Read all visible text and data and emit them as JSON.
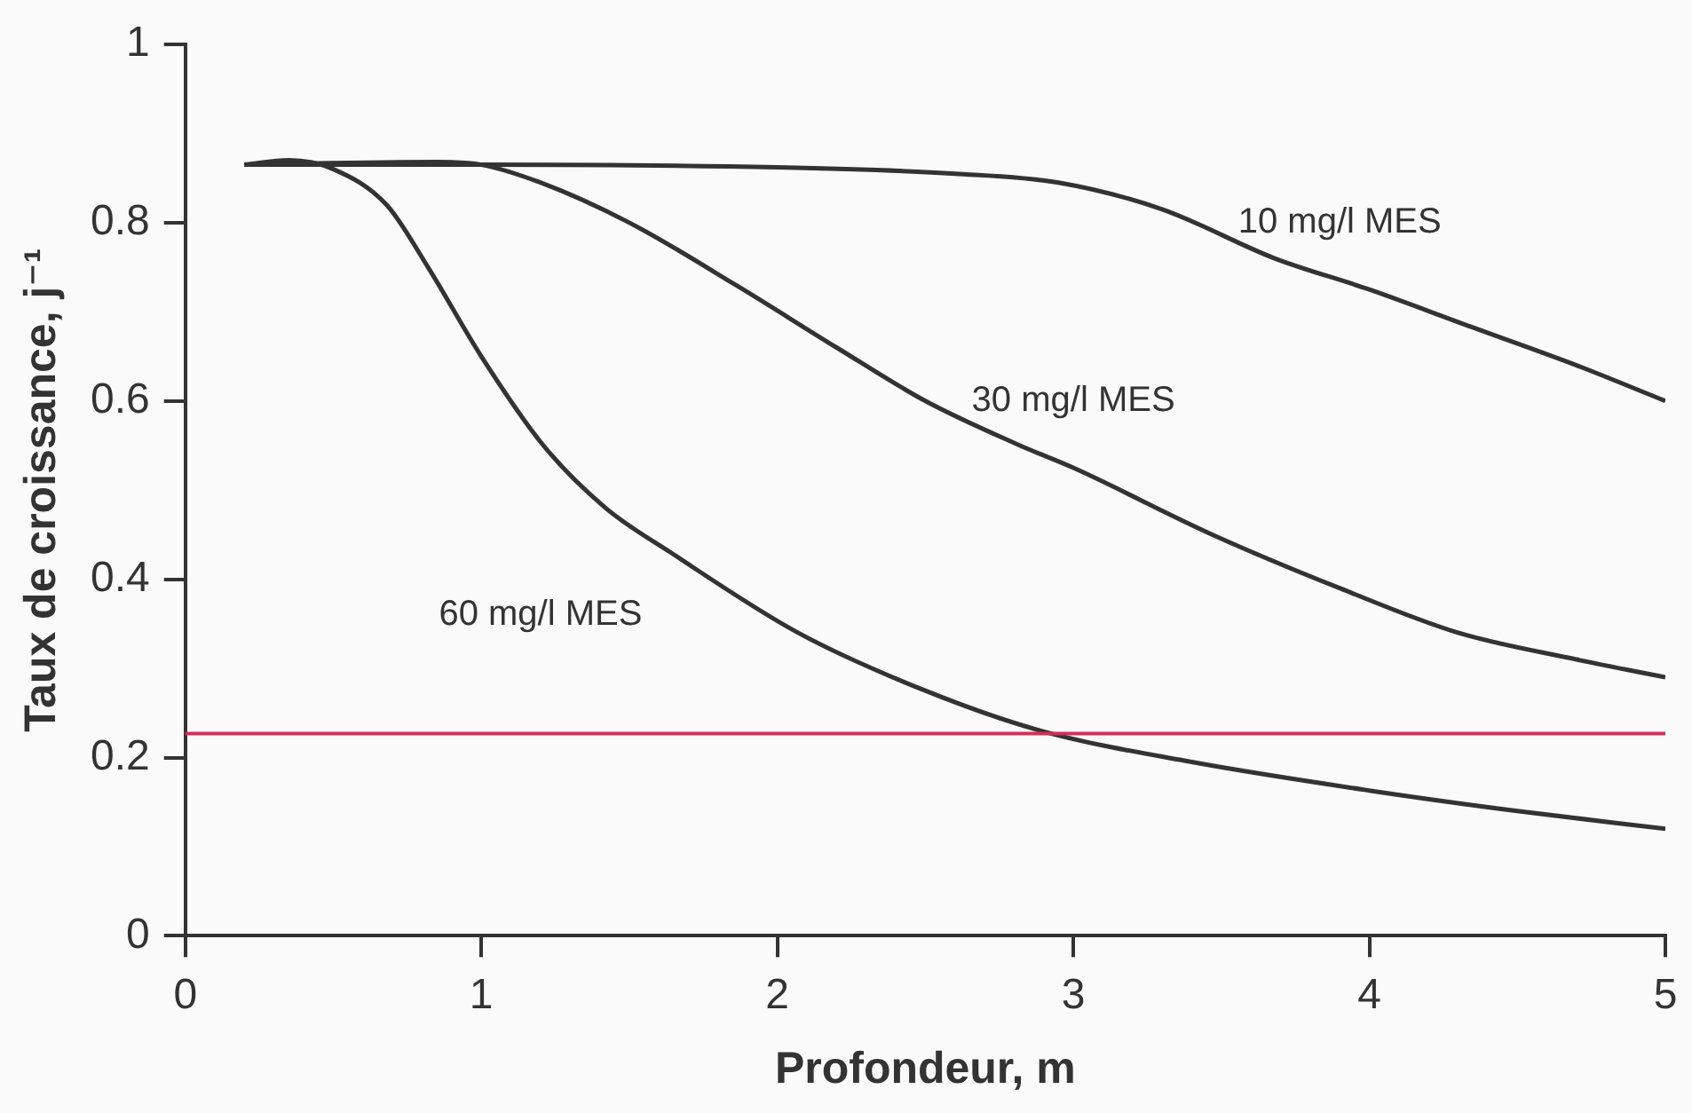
{
  "chart_data": {
    "type": "line",
    "xlabel": "Profondeur, m",
    "ylabel": "Taux de croissance, j⁻¹",
    "xlim": [
      0,
      5
    ],
    "xticks": [
      0,
      1,
      2,
      3,
      4,
      5
    ],
    "ylim": [
      0,
      1
    ],
    "yticks": [
      0,
      0.2,
      0.4,
      0.6,
      0.8,
      1
    ],
    "grid": false,
    "legend": false,
    "marker": "none",
    "line_style": "solid",
    "series": [
      {
        "name": "10 mg/l MES",
        "color": "#333333",
        "x": [
          0.2,
          1,
          2,
          2.6,
          2.95,
          3.3,
          3.68,
          4,
          4.32,
          4.7,
          5
        ],
        "values": [
          0.865,
          0.865,
          0.862,
          0.855,
          0.845,
          0.815,
          0.76,
          0.725,
          0.686,
          0.64,
          0.6
        ]
      },
      {
        "name": "30 mg/l MES",
        "color": "#333333",
        "x": [
          0.2,
          0.85,
          1,
          1.2,
          1.5,
          1.86,
          2.2,
          2.5,
          2.82,
          3,
          3.47,
          3.9,
          4.3,
          4.7,
          5
        ],
        "values": [
          0.865,
          0.868,
          0.865,
          0.845,
          0.8,
          0.73,
          0.66,
          0.6,
          0.55,
          0.525,
          0.45,
          0.39,
          0.34,
          0.31,
          0.29
        ]
      },
      {
        "name": "60 mg/l MES",
        "color": "#333333",
        "x": [
          0.2,
          0.35,
          0.5,
          0.68,
          0.82,
          1,
          1.21,
          1.42,
          1.64,
          2.07,
          2.5,
          2.89,
          3.4,
          4,
          4.5,
          5
        ],
        "values": [
          0.865,
          0.87,
          0.86,
          0.82,
          0.75,
          0.65,
          0.55,
          0.48,
          0.43,
          0.34,
          0.275,
          0.23,
          0.195,
          0.163,
          0.14,
          0.12
        ]
      }
    ],
    "ref_lines": [
      {
        "axis": "y",
        "value": 0.227,
        "color": "#d0305a"
      }
    ]
  }
}
